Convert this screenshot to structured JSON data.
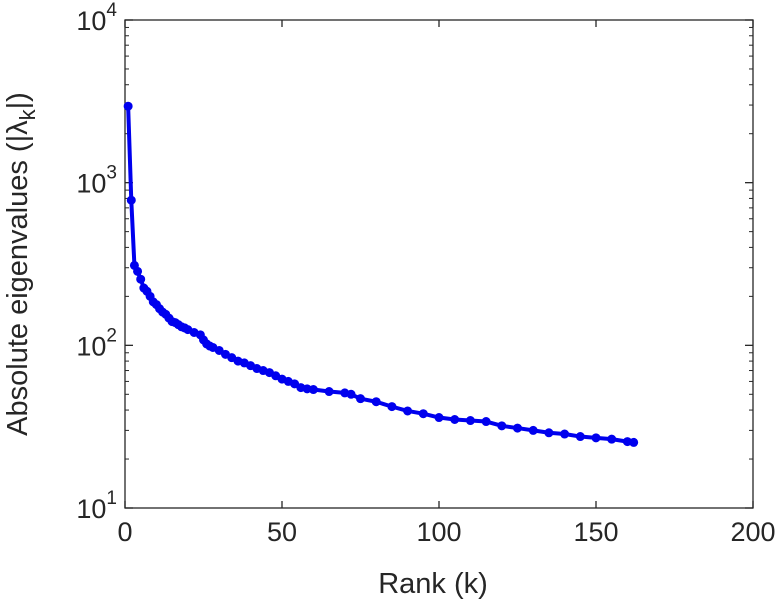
{
  "chart_data": {
    "type": "line",
    "title": "",
    "xlabel": "Rank (k)",
    "ylabel": {
      "main": "Absolute eigenvalues (|",
      "symbol": "λ",
      "subscript": "k",
      "close": "|)"
    },
    "xlim": [
      0,
      200
    ],
    "ylim": [
      10,
      10000
    ],
    "yscale": "log",
    "grid": false,
    "legend": "none",
    "xticks": [
      0,
      50,
      100,
      150,
      200
    ],
    "yticks": [
      {
        "base": "10",
        "exp": "1",
        "value": 10
      },
      {
        "base": "10",
        "exp": "2",
        "value": 100
      },
      {
        "base": "10",
        "exp": "3",
        "value": 1000
      },
      {
        "base": "10",
        "exp": "4",
        "value": 10000
      }
    ],
    "series": [
      {
        "color": "#0000ee",
        "marker": "circle",
        "x": [
          1,
          2,
          3,
          4,
          5,
          6,
          7,
          8,
          9,
          10,
          11,
          12,
          13,
          14,
          15,
          16,
          17,
          18,
          19,
          20,
          22,
          24,
          25,
          26,
          27,
          28,
          30,
          32,
          34,
          36,
          38,
          40,
          42,
          44,
          46,
          48,
          50,
          52,
          54,
          56,
          58,
          60,
          65,
          70,
          72,
          75,
          80,
          85,
          90,
          95,
          100,
          105,
          110,
          115,
          120,
          125,
          130,
          135,
          140,
          145,
          150,
          155,
          160,
          162
        ],
        "y": [
          2950,
          780,
          310,
          285,
          255,
          225,
          215,
          200,
          185,
          178,
          168,
          160,
          155,
          147,
          140,
          138,
          134,
          130,
          128,
          125,
          120,
          116,
          108,
          102,
          99,
          97,
          93,
          88,
          84,
          80,
          78,
          75,
          72,
          70,
          68,
          65,
          62,
          60,
          58,
          55,
          54,
          53.5,
          52,
          51,
          50,
          47,
          45,
          42,
          39.5,
          38,
          36,
          35,
          34.5,
          34,
          32,
          31,
          30,
          29,
          28.5,
          27.5,
          27,
          26.5,
          25.6,
          25.3
        ]
      }
    ]
  }
}
